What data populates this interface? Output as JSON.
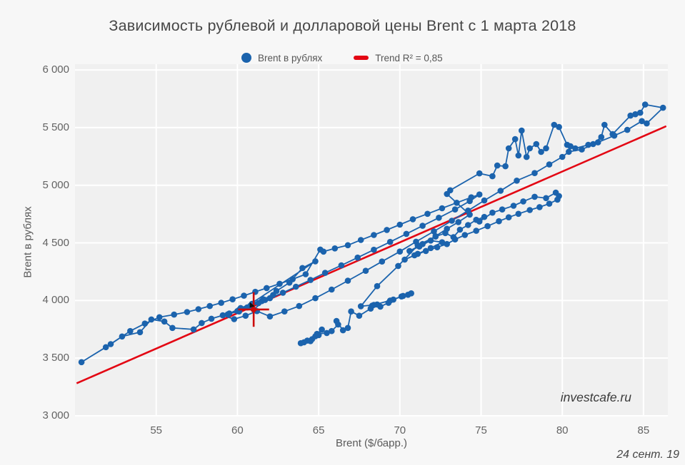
{
  "title": "Зависимость рублевой и долларовой цены Brent с 1 марта 2018",
  "watermark": "investcafe.ru",
  "date_label": "24 сент. 19",
  "colors": {
    "figure_bg": "#f7f7f7",
    "plot_bg": "#f0f0f0",
    "grid": "#ffffff",
    "points": "#1b63ad",
    "trend": "#e30613",
    "crosshair": "#cc0a0a",
    "cursor": "#111111"
  },
  "chart_data": {
    "type": "scatter",
    "title": "Зависимость рублевой и долларовой цены Brent с 1 марта 2018",
    "xlabel": "Brent ($/барр.)",
    "ylabel": "Brent в рублях",
    "series_name": "Brent в рублях",
    "legend_position": "top-center",
    "grid": true,
    "xlim": [
      50,
      86.5
    ],
    "ylim": [
      3000,
      6050
    ],
    "x_ticks": [
      55,
      60,
      65,
      70,
      75,
      80,
      85
    ],
    "y_ticks": [
      3000,
      3500,
      4000,
      4500,
      5000,
      5500,
      6000
    ],
    "y_tick_labels": [
      "3 000",
      "3 500",
      "4 000",
      "4 500",
      "5 000",
      "5 500",
      "6 000"
    ],
    "trend": {
      "label": "Trend R² = 0,85",
      "r_squared": 0.85,
      "endpoints": [
        [
          50.1,
          3282
        ],
        [
          86.4,
          5512
        ]
      ]
    },
    "crosshair": {
      "x": 61.0,
      "y": 3922,
      "half_width_usd": 0.95,
      "half_height_rub": 150
    },
    "cursor_mark": {
      "x": 60.8,
      "y": 3962
    },
    "points": [
      [
        63.9,
        3630
      ],
      [
        64.3,
        3652
      ],
      [
        64.1,
        3638
      ],
      [
        64.6,
        3665
      ],
      [
        64.8,
        3690
      ],
      [
        64.5,
        3648
      ],
      [
        65.0,
        3700
      ],
      [
        65.2,
        3748
      ],
      [
        64.9,
        3710
      ],
      [
        65.5,
        3718
      ],
      [
        65.8,
        3735
      ],
      [
        66.2,
        3792
      ],
      [
        66.1,
        3822
      ],
      [
        66.5,
        3742
      ],
      [
        66.8,
        3762
      ],
      [
        67.0,
        3905
      ],
      [
        67.5,
        3868
      ],
      [
        68.2,
        3930
      ],
      [
        68.3,
        3955
      ],
      [
        68.6,
        3966
      ],
      [
        68.8,
        3947
      ],
      [
        69.3,
        3980
      ],
      [
        69.6,
        4008
      ],
      [
        70.1,
        4035
      ],
      [
        70.5,
        4050
      ],
      [
        70.7,
        4062
      ],
      [
        70.2,
        4040
      ],
      [
        69.4,
        4000
      ],
      [
        68.4,
        3962
      ],
      [
        67.6,
        3950
      ],
      [
        68.6,
        4125
      ],
      [
        69.9,
        4300
      ],
      [
        71.1,
        4478
      ],
      [
        72.2,
        4555
      ],
      [
        72.8,
        4585
      ],
      [
        73.3,
        4550
      ],
      [
        73.7,
        4615
      ],
      [
        74.2,
        4655
      ],
      [
        74.7,
        4700
      ],
      [
        75.2,
        4725
      ],
      [
        74.9,
        4685
      ],
      [
        75.7,
        4762
      ],
      [
        76.3,
        4790
      ],
      [
        77.0,
        4822
      ],
      [
        77.6,
        4860
      ],
      [
        78.3,
        4900
      ],
      [
        79.0,
        4888
      ],
      [
        79.6,
        4936
      ],
      [
        79.8,
        4906
      ],
      [
        79.7,
        4875
      ],
      [
        79.2,
        4840
      ],
      [
        78.6,
        4810
      ],
      [
        78.0,
        4785
      ],
      [
        77.3,
        4752
      ],
      [
        76.7,
        4722
      ],
      [
        76.1,
        4688
      ],
      [
        75.4,
        4645
      ],
      [
        74.7,
        4605
      ],
      [
        74.0,
        4568
      ],
      [
        73.4,
        4530
      ],
      [
        72.9,
        4490
      ],
      [
        72.3,
        4462
      ],
      [
        71.6,
        4430
      ],
      [
        70.9,
        4392
      ],
      [
        70.3,
        4355
      ],
      [
        71.1,
        4405
      ],
      [
        71.9,
        4455
      ],
      [
        72.6,
        4505
      ],
      [
        71.9,
        4520
      ],
      [
        71.2,
        4468
      ],
      [
        70.6,
        4430
      ],
      [
        71.4,
        4490
      ],
      [
        72.2,
        4558
      ],
      [
        72.9,
        4622
      ],
      [
        73.6,
        4680
      ],
      [
        74.3,
        4745
      ],
      [
        72.9,
        4924
      ],
      [
        73.1,
        4956
      ],
      [
        74.9,
        5103
      ],
      [
        75.7,
        5078
      ],
      [
        76.0,
        5171
      ],
      [
        76.5,
        5165
      ],
      [
        76.7,
        5320
      ],
      [
        77.1,
        5400
      ],
      [
        77.3,
        5258
      ],
      [
        77.5,
        5474
      ],
      [
        77.8,
        5245
      ],
      [
        78.0,
        5320
      ],
      [
        78.4,
        5357
      ],
      [
        78.7,
        5289
      ],
      [
        79.0,
        5320
      ],
      [
        79.5,
        5524
      ],
      [
        79.8,
        5505
      ],
      [
        80.3,
        5350
      ],
      [
        80.5,
        5338
      ],
      [
        80.8,
        5320
      ],
      [
        81.6,
        5350
      ],
      [
        81.9,
        5357
      ],
      [
        82.4,
        5418
      ],
      [
        82.6,
        5524
      ],
      [
        83.1,
        5443
      ],
      [
        84.2,
        5604
      ],
      [
        84.5,
        5616
      ],
      [
        84.8,
        5629
      ],
      [
        85.1,
        5700
      ],
      [
        86.2,
        5672
      ],
      [
        85.2,
        5536
      ],
      [
        84.9,
        5556
      ],
      [
        84.0,
        5480
      ],
      [
        83.2,
        5430
      ],
      [
        82.2,
        5372
      ],
      [
        81.2,
        5310
      ],
      [
        80.4,
        5290
      ],
      [
        80.0,
        5246
      ],
      [
        79.2,
        5180
      ],
      [
        78.3,
        5105
      ],
      [
        77.2,
        5040
      ],
      [
        76.2,
        4952
      ],
      [
        75.2,
        4868
      ],
      [
        74.2,
        4780
      ],
      [
        73.2,
        4692
      ],
      [
        72.1,
        4600
      ],
      [
        71.0,
        4510
      ],
      [
        70.0,
        4425
      ],
      [
        68.9,
        4338
      ],
      [
        67.9,
        4258
      ],
      [
        66.8,
        4172
      ],
      [
        65.8,
        4095
      ],
      [
        64.8,
        4020
      ],
      [
        63.8,
        3952
      ],
      [
        62.9,
        3905
      ],
      [
        62.0,
        3862
      ],
      [
        61.2,
        3908
      ],
      [
        60.5,
        3868
      ],
      [
        59.8,
        3838
      ],
      [
        59.1,
        3872
      ],
      [
        58.4,
        3842
      ],
      [
        57.8,
        3805
      ],
      [
        57.3,
        3749
      ],
      [
        56.0,
        3762
      ],
      [
        55.5,
        3818
      ],
      [
        54.7,
        3836
      ],
      [
        54.0,
        3725
      ],
      [
        52.9,
        3688
      ],
      [
        51.9,
        3595
      ],
      [
        50.4,
        3465
      ],
      [
        52.2,
        3622
      ],
      [
        53.4,
        3735
      ],
      [
        54.3,
        3800
      ],
      [
        55.2,
        3855
      ],
      [
        56.1,
        3878
      ],
      [
        56.9,
        3900
      ],
      [
        57.6,
        3925
      ],
      [
        58.3,
        3952
      ],
      [
        59.0,
        3980
      ],
      [
        59.7,
        4010
      ],
      [
        60.4,
        4042
      ],
      [
        61.1,
        4075
      ],
      [
        61.8,
        4108
      ],
      [
        62.6,
        4145
      ],
      [
        63.4,
        4185
      ],
      [
        64.2,
        4228
      ],
      [
        65.1,
        4442
      ],
      [
        65.3,
        4424
      ],
      [
        66.0,
        4452
      ],
      [
        66.8,
        4480
      ],
      [
        67.6,
        4525
      ],
      [
        68.4,
        4568
      ],
      [
        69.2,
        4612
      ],
      [
        70.0,
        4658
      ],
      [
        70.8,
        4705
      ],
      [
        71.7,
        4752
      ],
      [
        72.6,
        4800
      ],
      [
        73.5,
        4848
      ],
      [
        74.4,
        4895
      ],
      [
        74.9,
        4920
      ],
      [
        74.3,
        4862
      ],
      [
        73.4,
        4790
      ],
      [
        72.4,
        4718
      ],
      [
        71.4,
        4648
      ],
      [
        70.4,
        4578
      ],
      [
        69.4,
        4508
      ],
      [
        68.4,
        4440
      ],
      [
        67.4,
        4372
      ],
      [
        66.4,
        4305
      ],
      [
        65.4,
        4240
      ],
      [
        64.5,
        4178
      ],
      [
        63.6,
        4120
      ],
      [
        62.8,
        4068
      ],
      [
        62.0,
        4020
      ],
      [
        61.3,
        3978
      ],
      [
        60.6,
        3940
      ],
      [
        60.0,
        3908
      ],
      [
        59.4,
        3880
      ],
      [
        60.2,
        3935
      ],
      [
        60.9,
        3972
      ],
      [
        61.6,
        4010
      ],
      [
        62.2,
        4048
      ],
      [
        61.5,
        3995
      ],
      [
        60.8,
        3955
      ],
      [
        60.1,
        3918
      ],
      [
        59.5,
        3888
      ],
      [
        60.1,
        3905
      ],
      [
        64.8,
        4340
      ],
      [
        64.0,
        4282
      ],
      [
        63.2,
        4155
      ],
      [
        62.4,
        4082
      ],
      [
        61.7,
        4005
      ],
      [
        61.0,
        3922
      ]
    ]
  }
}
